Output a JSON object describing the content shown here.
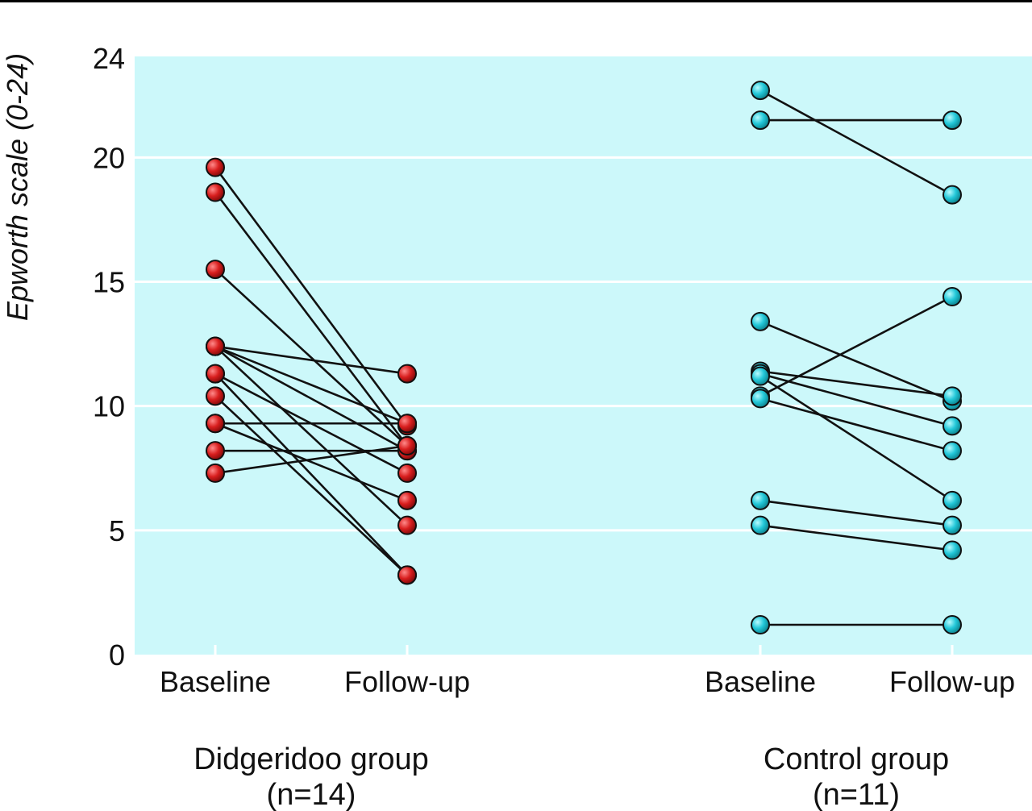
{
  "chart_data": {
    "type": "line",
    "ylabel": "Epworth scale (0-24)",
    "ylim": [
      0,
      24
    ],
    "yticks": [
      0,
      5,
      10,
      15,
      20,
      24
    ],
    "grid": true,
    "background_color": "#ccf8fa",
    "grid_color": "#ffffff",
    "groups": [
      {
        "label": "Didgeridoo group",
        "n_label": "(n=14)",
        "categories": [
          "Baseline",
          "Follow-up"
        ],
        "marker_color": "#d62020",
        "pairs": [
          [
            19.6,
            9.2
          ],
          [
            18.6,
            8.4
          ],
          [
            15.5,
            8.4
          ],
          [
            12.4,
            11.3
          ],
          [
            12.4,
            9.3
          ],
          [
            12.4,
            8.2
          ],
          [
            12.4,
            5.2
          ],
          [
            11.3,
            7.3
          ],
          [
            11.3,
            3.2
          ],
          [
            10.4,
            3.2
          ],
          [
            9.3,
            9.3
          ],
          [
            9.3,
            6.2
          ],
          [
            8.2,
            8.2
          ],
          [
            7.3,
            8.4
          ]
        ]
      },
      {
        "label": "Control group",
        "n_label": "(n=11)",
        "categories": [
          "Baseline",
          "Follow-up"
        ],
        "marker_color": "#22c7d8",
        "pairs": [
          [
            22.7,
            18.5
          ],
          [
            21.5,
            21.5
          ],
          [
            13.4,
            10.2
          ],
          [
            11.4,
            10.4
          ],
          [
            11.3,
            9.2
          ],
          [
            11.2,
            6.2
          ],
          [
            10.4,
            14.4
          ],
          [
            10.3,
            8.2
          ],
          [
            6.2,
            5.2
          ],
          [
            5.2,
            4.2
          ],
          [
            1.2,
            1.2
          ]
        ]
      }
    ]
  }
}
